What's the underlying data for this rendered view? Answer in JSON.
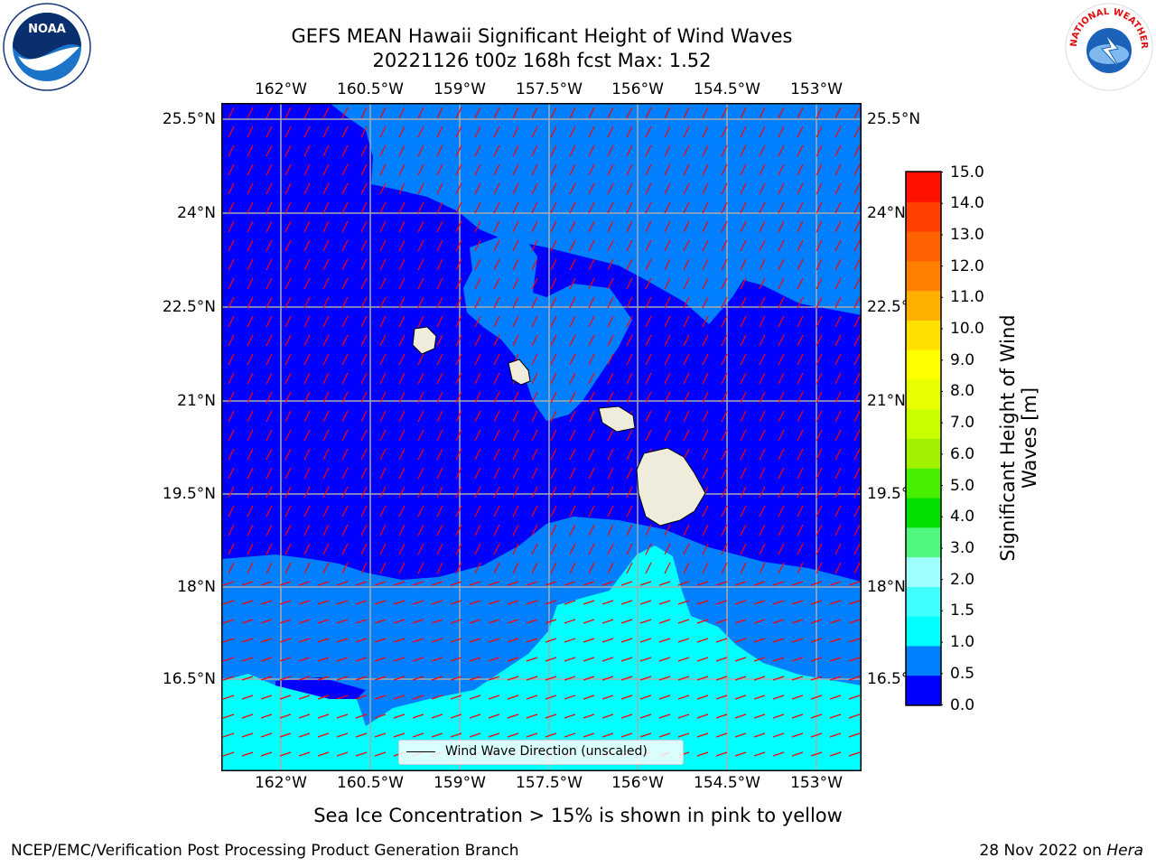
{
  "title": {
    "line1": "GEFS MEAN Hawaii Significant Height of Wind Waves",
    "line2": "20221126 t00z 168h fcst   Max: 1.52"
  },
  "map": {
    "lon_labels": [
      "162°W",
      "160.5°W",
      "159°W",
      "157.5°W",
      "156°W",
      "154.5°W",
      "153°W"
    ],
    "lat_labels": [
      "25.5°N",
      "24°N",
      "22.5°N",
      "21°N",
      "19.5°N",
      "18°N",
      "16.5°N"
    ],
    "colors": {
      "band_0": "#0000ff",
      "band_05": "#0080ff",
      "band_10": "#00ffff",
      "land": "#efecdb",
      "arrow": "#ff0000",
      "grid": "#aaaaaa"
    }
  },
  "legend": {
    "label": "Wind Wave Direction (unscaled)"
  },
  "colorbar": {
    "label_line1": "Significant Height of Wind",
    "label_line2": "Waves [m]",
    "ticks": [
      "15.0",
      "14.0",
      "13.0",
      "12.0",
      "11.0",
      "10.0",
      "9.0",
      "8.0",
      "7.0",
      "6.0",
      "5.0",
      "4.0",
      "3.0",
      "2.0",
      "1.5",
      "1.0",
      "0.5",
      "0.0"
    ],
    "colors": [
      "#0000ff",
      "#0080ff",
      "#00ffff",
      "#40ffff",
      "#a0ffff",
      "#50f880",
      "#00e000",
      "#48f000",
      "#a0f000",
      "#c8ff00",
      "#e8ff00",
      "#ffff00",
      "#ffe000",
      "#ffb000",
      "#ff8000",
      "#ff6000",
      "#ff4000",
      "#ff1000"
    ]
  },
  "note": "Sea Ice Concentration > 15% is shown in pink to yellow",
  "footer": {
    "left": "NCEP/EMC/Verification Post Processing Product Generation Branch",
    "right_prefix": "28 Nov 2022 on ",
    "right_italic": "Hera"
  },
  "logos": {
    "noaa": "NOAA",
    "nws": "NATIONAL WEATHER SERVICE"
  }
}
